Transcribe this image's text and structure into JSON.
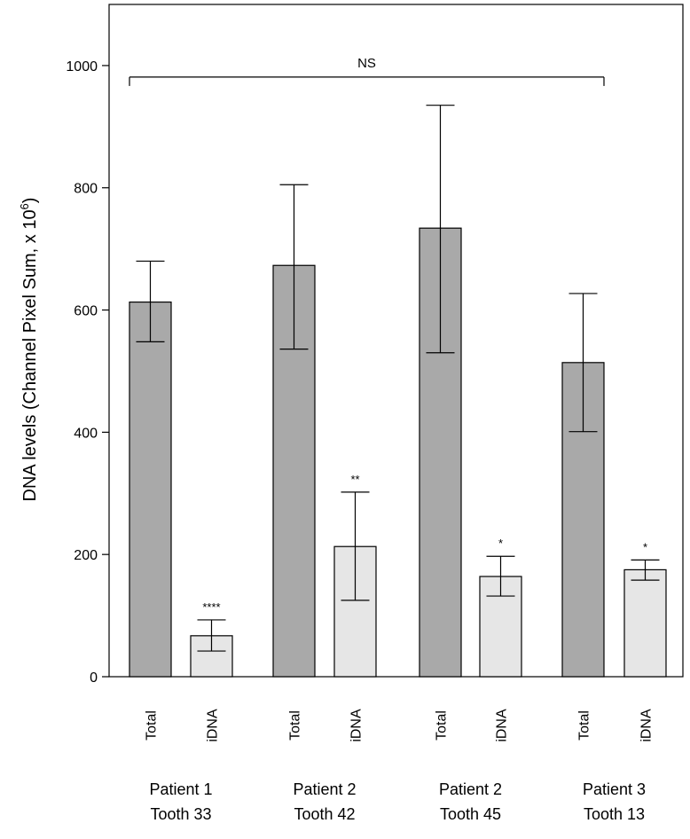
{
  "chart_data": {
    "type": "bar",
    "ylabel": "DNA levels (Channel Pixel Sum, x 10",
    "ylabel_sup": "6",
    "ylabel_close": ")",
    "ylim": [
      0,
      1100
    ],
    "yticks": [
      0,
      200,
      400,
      600,
      800,
      1000
    ],
    "groups": [
      {
        "line1": "Patient 1",
        "line2": "Tooth 33"
      },
      {
        "line1": "Patient 2",
        "line2": "Tooth 42"
      },
      {
        "line1": "Patient 2",
        "line2": "Tooth 45"
      },
      {
        "line1": "Patient 3",
        "line2": "Tooth 13"
      }
    ],
    "bars": [
      {
        "label": "Total",
        "group": 0,
        "series": "Total",
        "value": 613,
        "err_low": 548,
        "err_high": 680,
        "sig": ""
      },
      {
        "label": "iDNA",
        "group": 0,
        "series": "iDNA",
        "value": 67,
        "err_low": 42,
        "err_high": 93,
        "sig": "****"
      },
      {
        "label": "Total",
        "group": 1,
        "series": "Total",
        "value": 673,
        "err_low": 536,
        "err_high": 805,
        "sig": ""
      },
      {
        "label": "iDNA",
        "group": 1,
        "series": "iDNA",
        "value": 213,
        "err_low": 125,
        "err_high": 302,
        "sig": "**"
      },
      {
        "label": "Total",
        "group": 2,
        "series": "Total",
        "value": 734,
        "err_low": 530,
        "err_high": 935,
        "sig": ""
      },
      {
        "label": "iDNA",
        "group": 2,
        "series": "iDNA",
        "value": 164,
        "err_low": 132,
        "err_high": 197,
        "sig": "*"
      },
      {
        "label": "Total",
        "group": 3,
        "series": "Total",
        "value": 514,
        "err_low": 401,
        "err_high": 627,
        "sig": ""
      },
      {
        "label": "iDNA",
        "group": 3,
        "series": "iDNA",
        "value": 175,
        "err_low": 158,
        "err_high": 191,
        "sig": "*"
      }
    ],
    "bracket": {
      "label": "NS",
      "from_bar": 0,
      "to_bar": 6,
      "value": 1000
    },
    "colors": {
      "Total": "#a9a9a9",
      "iDNA": "#e6e6e6",
      "stroke": "#000000"
    }
  }
}
